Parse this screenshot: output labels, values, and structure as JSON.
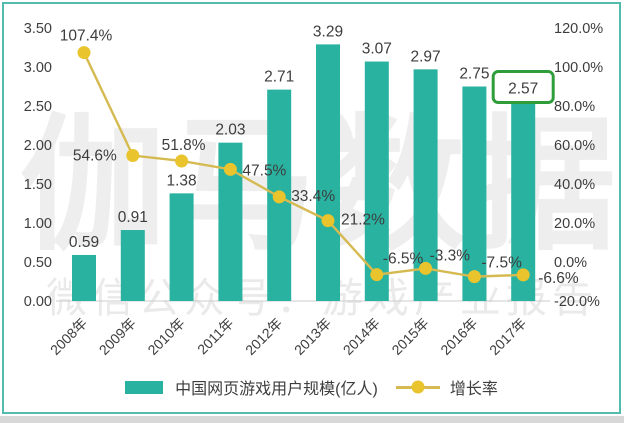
{
  "chart_data": {
    "type": "bar",
    "subtype": "combo-bar-line",
    "categories": [
      "2008年",
      "2009年",
      "2010年",
      "2011年",
      "2012年",
      "2013年",
      "2014年",
      "2015年",
      "2016年",
      "2017年"
    ],
    "series": [
      {
        "name": "中国网页游戏用户规模(亿人)",
        "chart": "bar",
        "axis": "left",
        "color": "#29b2a0",
        "values": [
          0.59,
          0.91,
          1.38,
          2.03,
          2.71,
          3.29,
          3.07,
          2.97,
          2.75,
          2.57
        ],
        "labels": [
          "0.59",
          "0.91",
          "1.38",
          "2.03",
          "2.71",
          "3.29",
          "3.07",
          "2.97",
          "2.75",
          "2.57"
        ]
      },
      {
        "name": "增长率",
        "chart": "line",
        "axis": "right",
        "line_color": "#d5ba52",
        "marker_color": "#e9c42d",
        "values_percent": [
          107.4,
          54.6,
          51.8,
          47.5,
          33.4,
          21.2,
          -6.5,
          -3.3,
          -7.5,
          -6.6
        ],
        "labels": [
          "107.4%",
          "54.6%",
          "51.8%",
          "47.5%",
          "33.4%",
          "21.2%",
          "-6.5%",
          "-3.3%",
          "-7.5%",
          "-6.6%"
        ]
      }
    ],
    "left_axis": {
      "ticks": [
        "3.50",
        "3.00",
        "2.50",
        "2.00",
        "1.50",
        "1.00",
        "0.50",
        "0.00"
      ],
      "min": 0,
      "max": 3.5
    },
    "right_axis": {
      "ticks": [
        "120.0%",
        "100.0%",
        "80.0%",
        "60.0%",
        "40.0%",
        "20.0%",
        "0.0%",
        "-20.0%"
      ],
      "min": -20,
      "max": 120
    },
    "highlight": {
      "index": 9,
      "label": "2.57",
      "box_color": "#2f9e3a"
    },
    "grid": "off",
    "legend_position": "bottom",
    "text_color": "#3d3d3d"
  },
  "watermarks": {
    "main": "伽马数据",
    "sub": "微信公众号：游戏产业报告"
  },
  "frame": {
    "border_color": "#53bcae",
    "strip_color": "#d8d8d8"
  }
}
